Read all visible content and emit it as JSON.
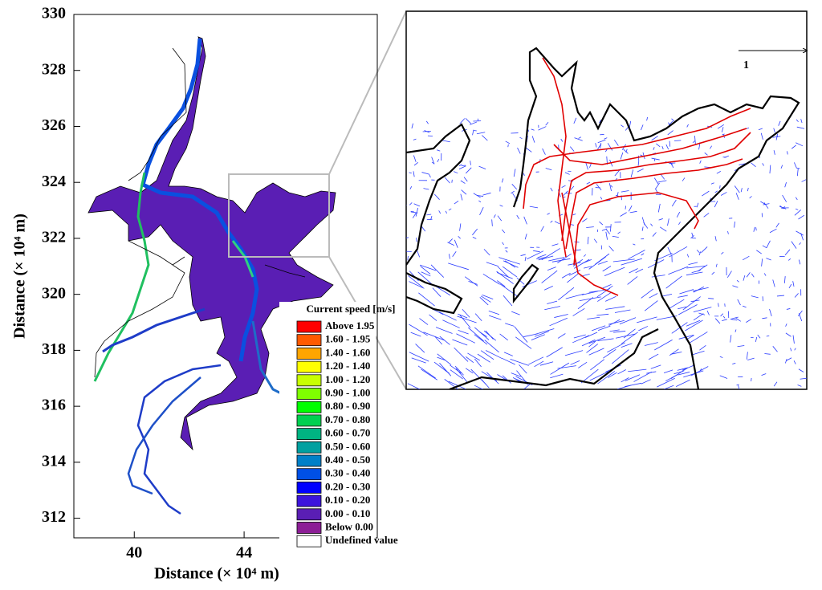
{
  "chart_data": {
    "type": "contour-map",
    "x_label": "Distance (× 10⁴ m)",
    "y_label": "Distance (× 10⁴ m)",
    "xlim": [
      37.8,
      48.85
    ],
    "ylim": [
      311.3,
      330
    ],
    "xticks": [
      40,
      44
    ],
    "yticks": [
      312,
      314,
      316,
      318,
      320,
      322,
      324,
      326,
      328,
      330
    ],
    "legend_title": "Current speed [m/s]",
    "legend": [
      {
        "label": "Above 1.95",
        "color": "#ff0000"
      },
      {
        "label": "1.60 - 1.95",
        "color": "#ff5a00"
      },
      {
        "label": "1.40 - 1.60",
        "color": "#ffa500"
      },
      {
        "label": "1.20 - 1.40",
        "color": "#ffff00"
      },
      {
        "label": "1.00 - 1.20",
        "color": "#c8ff00"
      },
      {
        "label": "0.90 - 1.00",
        "color": "#7fff00"
      },
      {
        "label": "0.80 - 0.90",
        "color": "#00ff00"
      },
      {
        "label": "0.70 - 0.80",
        "color": "#00d050"
      },
      {
        "label": "0.60 - 0.70",
        "color": "#00b482"
      },
      {
        "label": "0.50 - 0.60",
        "color": "#00a0a0"
      },
      {
        "label": "0.40 - 0.50",
        "color": "#0080c8"
      },
      {
        "label": "0.30 - 0.40",
        "color": "#0050e6"
      },
      {
        "label": "0.20 - 0.30",
        "color": "#0000ff"
      },
      {
        "label": "0.10 - 0.20",
        "color": "#3c14dc"
      },
      {
        "label": "0.00 - 0.10",
        "color": "#5a1eb4"
      },
      {
        "label": "Below 0.00",
        "color": "#8c1e96"
      },
      {
        "label": "Undefined value",
        "color": "#ffffff"
      }
    ],
    "inset_scale_label": "1"
  }
}
